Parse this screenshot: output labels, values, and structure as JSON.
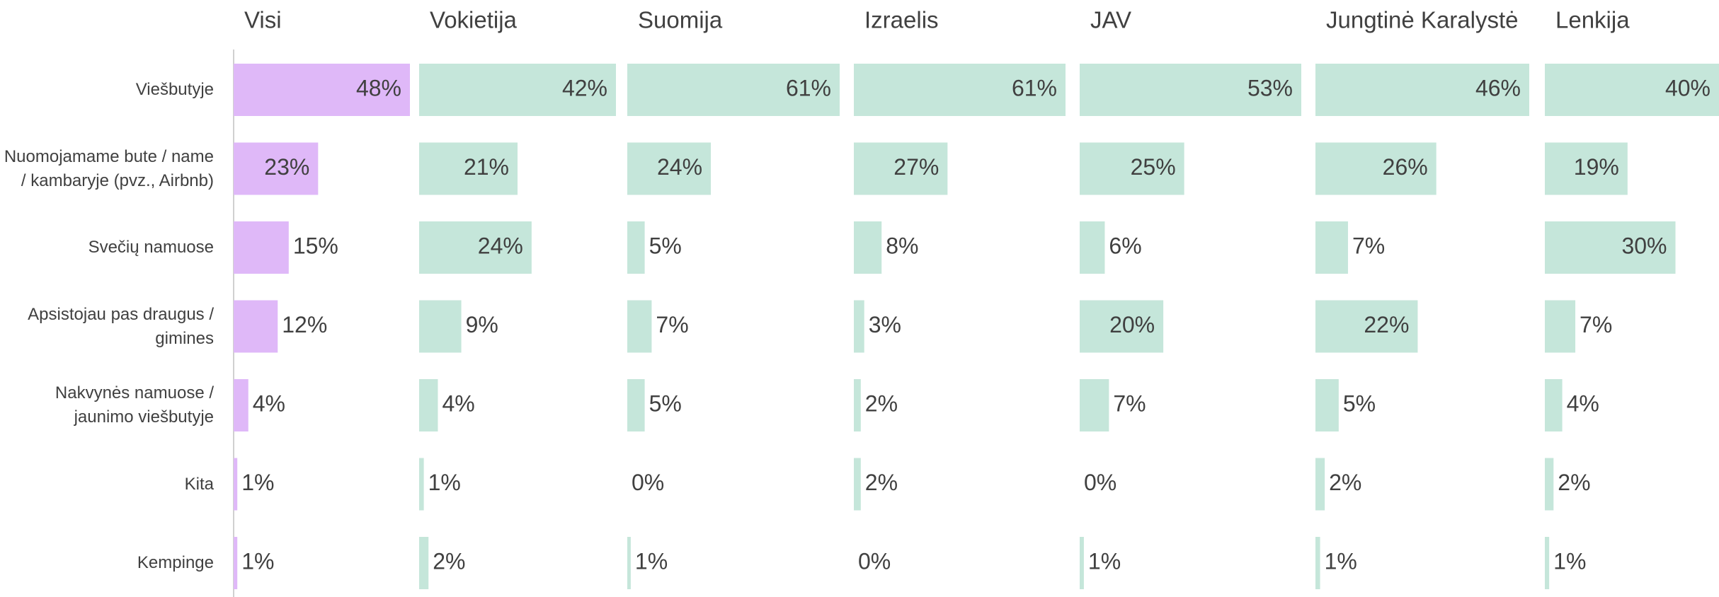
{
  "chart_data": {
    "type": "bar",
    "categories": [
      "Viešbutyje",
      "Nuomojamame bute / name / kambaryje (pvz., Airbnb)",
      "Svečių namuose",
      "Apsistojau pas draugus / gimines",
      "Nakvynės namuose / jaunimo viešbutyje",
      "Kita",
      "Kempinge"
    ],
    "series": [
      {
        "name": "Visi",
        "color": "#dfb8f8",
        "values": [
          48,
          23,
          15,
          12,
          4,
          1,
          1
        ],
        "value_labels": [
          "48%",
          "23%",
          "15%",
          "12%",
          "4%",
          "1%",
          "1%"
        ]
      },
      {
        "name": "Vokietija",
        "color": "#c5e6da",
        "values": [
          42,
          21,
          24,
          9,
          4,
          1,
          2
        ],
        "value_labels": [
          "42%",
          "21%",
          "24%",
          "9%",
          "4%",
          "1%",
          "2%"
        ]
      },
      {
        "name": "Suomija",
        "color": "#c5e6da",
        "values": [
          61,
          24,
          5,
          7,
          5,
          0,
          1
        ],
        "value_labels": [
          "61%",
          "24%",
          "5%",
          "7%",
          "5%",
          "0%",
          "1%"
        ]
      },
      {
        "name": "Izraelis",
        "color": "#c5e6da",
        "values": [
          61,
          27,
          8,
          3,
          2,
          2,
          0
        ],
        "value_labels": [
          "61%",
          "27%",
          "8%",
          "3%",
          "2%",
          "2%",
          "0%"
        ]
      },
      {
        "name": "JAV",
        "color": "#c5e6da",
        "values": [
          53,
          25,
          6,
          20,
          7,
          0,
          1
        ],
        "value_labels": [
          "53%",
          "25%",
          "6%",
          "20%",
          "7%",
          "0%",
          "1%"
        ]
      },
      {
        "name": "Jungtinė Karalystė",
        "color": "#c5e6da",
        "values": [
          46,
          26,
          7,
          22,
          5,
          2,
          1
        ],
        "value_labels": [
          "46%",
          "26%",
          "7%",
          "22%",
          "5%",
          "2%",
          "1%"
        ]
      },
      {
        "name": "Lenkija",
        "color": "#c5e6da",
        "values": [
          40,
          19,
          30,
          7,
          4,
          2,
          1
        ],
        "value_labels": [
          "40%",
          "19%",
          "30%",
          "7%",
          "4%",
          "2%",
          "1%"
        ]
      }
    ]
  }
}
